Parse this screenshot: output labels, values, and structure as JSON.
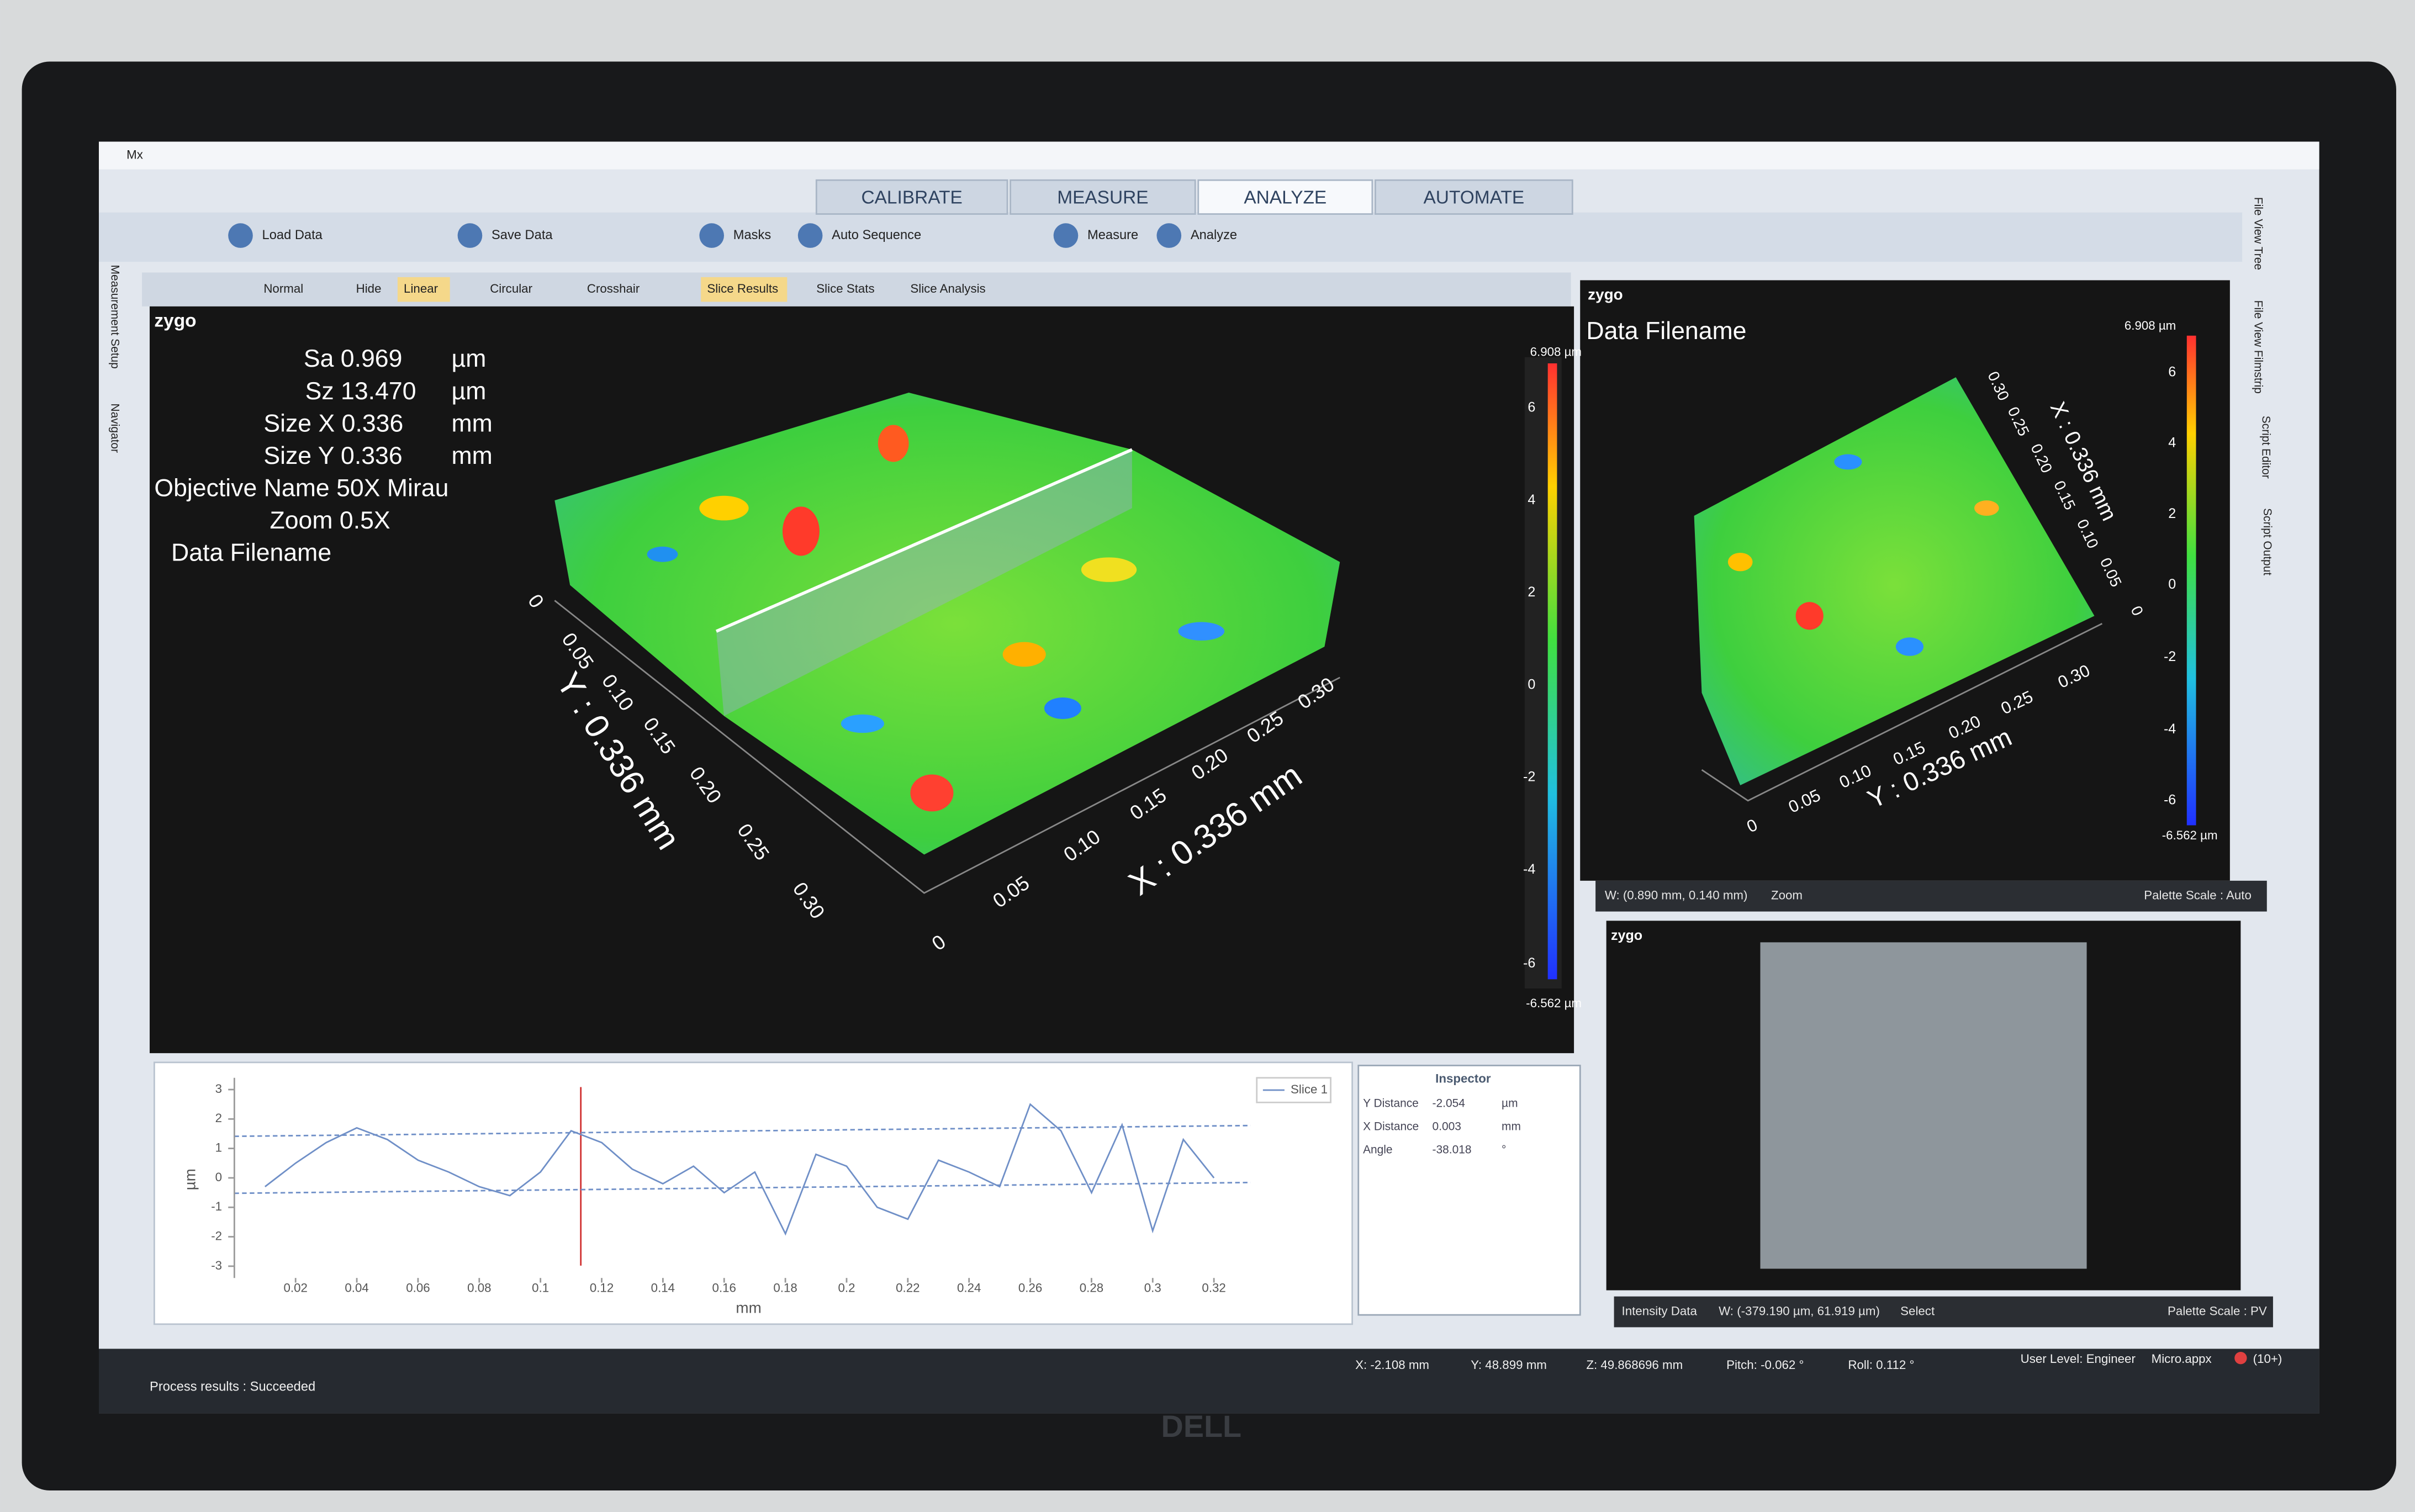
{
  "window_title": "Mx",
  "tabs": [
    "CALIBRATE",
    "MEASURE",
    "ANALYZE",
    "AUTOMATE"
  ],
  "toolbar": [
    "Load Data",
    "Save Data",
    "Masks",
    "Auto Sequence",
    "Measure",
    "Analyze"
  ],
  "view_toolbar": [
    "Normal",
    "Hide",
    "Linear",
    "Circular",
    "Crosshair",
    "Slice Results",
    "Slice Stats",
    "Slice Analysis"
  ],
  "side_tabs_left": [
    "Measurement Setup",
    "Navigator"
  ],
  "side_tabs_right": [
    "File View Tree",
    "File View Filmstrip",
    "Script Editor",
    "Script Output"
  ],
  "main_view": {
    "logo": "zygo",
    "stats": [
      {
        "label": "Sa 0.969",
        "unit": "µm"
      },
      {
        "label": "Sz 13.470",
        "unit": "µm"
      },
      {
        "label": "Size X 0.336",
        "unit": "mm"
      },
      {
        "label": "Size Y 0.336",
        "unit": "mm"
      }
    ],
    "objective": "Objective Name 50X Mirau",
    "zoom": "Zoom 0.5X",
    "filename": "Data Filename",
    "color_scale": [
      "6.908 µm",
      "6",
      "4",
      "2",
      "0",
      "-2",
      "-4",
      "-6",
      "-6.562 µm"
    ],
    "y_axis": {
      "label": "Y : 0.336 mm",
      "ticks": [
        "0",
        "0.05",
        "0.10",
        "0.15",
        "0.20",
        "0.25",
        "0.30"
      ]
    },
    "x_axis": {
      "label": "X : 0.336 mm",
      "ticks": [
        "0",
        "0.05",
        "0.10",
        "0.15",
        "0.20",
        "0.25",
        "0.30"
      ]
    }
  },
  "right_view": {
    "logo": "zygo",
    "filename": "Data Filename",
    "color_scale": [
      "6.908 µm",
      "6",
      "4",
      "2",
      "0",
      "-2",
      "-4",
      "-6",
      "-6.562 µm"
    ],
    "y_axis": {
      "label": "Y : 0.336 mm",
      "ticks": [
        "0",
        "0.05",
        "0.10",
        "0.15",
        "0.20",
        "0.25",
        "0.30"
      ]
    },
    "x_axis": {
      "label": "X : 0.336 mm",
      "ticks": [
        "0",
        "0.05",
        "0.10",
        "0.15",
        "0.20",
        "0.25",
        "0.30"
      ]
    },
    "status": [
      "W: (0.890 mm, 0.140 mm)",
      "Zoom",
      "Palette Scale : Auto"
    ]
  },
  "intensity_view": {
    "logo": "zygo",
    "status": [
      "Intensity Data",
      "W: (-379.190 µm, 61.919 µm)",
      "Select",
      "Palette Scale : PV"
    ]
  },
  "slice_profile": {
    "legend": "Slice 1",
    "x_label": "mm",
    "y_label": "µm",
    "color": "#6f8fc7",
    "xlim": [
      0,
      0.335
    ],
    "ylim": [
      -3.4,
      3.4
    ],
    "xticks": [
      0.02,
      0.04,
      0.06,
      0.08,
      0.1,
      0.12,
      0.14,
      0.16,
      0.18,
      0.2,
      0.22,
      0.24,
      0.26,
      0.28,
      0.3,
      0.32
    ],
    "yticks": [
      -3,
      -2,
      -1,
      0,
      1,
      2,
      3
    ],
    "x": [
      0.01,
      0.02,
      0.03,
      0.04,
      0.05,
      0.06,
      0.07,
      0.08,
      0.09,
      0.1,
      0.11,
      0.12,
      0.13,
      0.14,
      0.15,
      0.16,
      0.17,
      0.18,
      0.19,
      0.2,
      0.21,
      0.22,
      0.23,
      0.24,
      0.25,
      0.26,
      0.27,
      0.28,
      0.29,
      0.3,
      0.31,
      0.32
    ],
    "values": [
      -0.3,
      0.5,
      1.2,
      1.7,
      1.3,
      0.6,
      0.2,
      -0.3,
      -0.6,
      0.2,
      1.6,
      1.2,
      0.3,
      -0.2,
      0.4,
      -0.5,
      0.2,
      -1.9,
      0.8,
      0.4,
      -1.0,
      -1.4,
      0.6,
      0.2,
      -0.3,
      2.5,
      1.6,
      -0.5,
      1.8,
      -1.8,
      1.3,
      0.0
    ]
  },
  "inspector": {
    "title": "Inspector",
    "rows": [
      [
        "Y Distance",
        "-2.054",
        "µm"
      ],
      [
        "X Distance",
        "0.003",
        "mm"
      ],
      [
        "Angle",
        "-38.018",
        "°"
      ]
    ]
  },
  "status_bar": {
    "message": "Process results : Succeeded",
    "readouts": [
      "X: -2.108 mm",
      "Y: 48.899 mm",
      "Z: 49.868696 mm",
      "Pitch: -0.062 °",
      "Roll: 0.112 °"
    ],
    "user_level": "User Level: Engineer",
    "file": "Micro.appx",
    "alerts": "(10+)"
  },
  "monitor_brand": "DELL"
}
